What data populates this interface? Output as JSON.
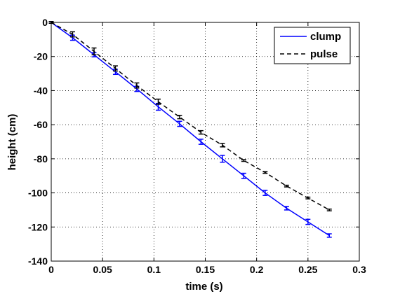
{
  "chart_data": {
    "type": "line",
    "title": "",
    "xlabel": "time (s)",
    "ylabel": "height (cm)",
    "xlim": [
      0,
      0.3
    ],
    "ylim": [
      -140,
      0
    ],
    "xticks": [
      0,
      0.05,
      0.1,
      0.15,
      0.2,
      0.25,
      0.3
    ],
    "xtick_labels": [
      "0",
      "0.05",
      "0.1",
      "0.15",
      "0.2",
      "0.25",
      "0.3"
    ],
    "yticks": [
      0,
      -20,
      -40,
      -60,
      -80,
      -100,
      -120,
      -140
    ],
    "ytick_labels": [
      "0",
      "-20",
      "-40",
      "-60",
      "-80",
      "-100",
      "-120",
      "-140"
    ],
    "grid": true,
    "legend": "top-right",
    "series": [
      {
        "name": "clump",
        "color": "#0000ff",
        "style": "solid",
        "x": [
          0,
          0.0208,
          0.0417,
          0.0625,
          0.0833,
          0.1042,
          0.125,
          0.1458,
          0.1667,
          0.1875,
          0.2083,
          0.2292,
          0.25,
          0.2708
        ],
        "y": [
          0,
          -9,
          -19,
          -29,
          -39,
          -49.5,
          -59.5,
          -70,
          -80,
          -90,
          -100,
          -109,
          -117,
          -125
        ],
        "err": [
          0.5,
          1.5,
          1.2,
          1.5,
          1.5,
          2,
          1.5,
          1.5,
          2,
          1.5,
          1.5,
          1,
          1.5,
          1
        ]
      },
      {
        "name": "pulse",
        "color": "#000000",
        "style": "dashed",
        "x": [
          0,
          0.0208,
          0.0417,
          0.0625,
          0.0833,
          0.1042,
          0.125,
          0.1458,
          0.1667,
          0.1875,
          0.2083,
          0.2292,
          0.25,
          0.2708
        ],
        "y": [
          0,
          -7,
          -17,
          -27,
          -37,
          -46.5,
          -55.5,
          -64.5,
          -72,
          -81,
          -88,
          -96,
          -103,
          -110
        ],
        "err": [
          0.5,
          1.5,
          2,
          1.5,
          1.5,
          1.5,
          1,
          1,
          1,
          0.5,
          0.5,
          0.5,
          0.5,
          0.5
        ]
      }
    ]
  }
}
